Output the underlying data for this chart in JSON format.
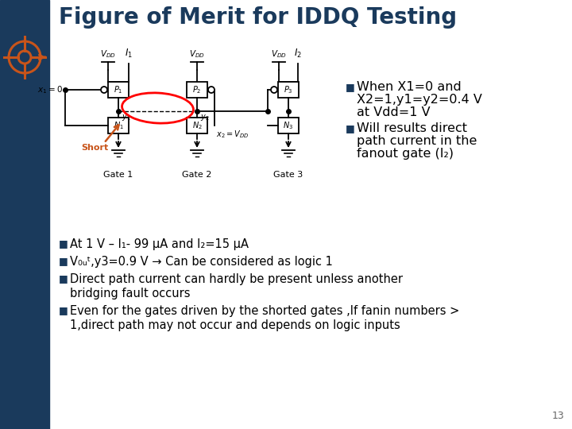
{
  "title": "Figure of Merit for IDDQ Testing",
  "title_color": "#1a3a5c",
  "title_fontsize": 20,
  "bg_color": "#ffffff",
  "left_bar_color": "#1a3a5c",
  "accent_color": "#c8541a",
  "slide_number": "13",
  "bullet1_right_line1": " When X1=0 and",
  "bullet1_right_line2": "  X2=1,y1=y2=0.4 V",
  "bullet1_right_line3": "  at Vdd=1 V",
  "bullet2_right_line1": " Will results direct",
  "bullet2_right_line2": "  path current in the",
  "bullet2_right_line3": "  fanout gate (I₂)",
  "bullet1_bottom": "At 1 V – I₁- 99 μA and I₂=15 μA",
  "bullet2_bottom": "V₀ᵤᵗ,y3=0.9 V → Can be considered as logic 1",
  "bullet3_bottom_l1": "Direct path current can hardly be present unless another",
  "bullet3_bottom_l2": "bridging fault occurs",
  "bullet4_bottom_l1": "Even for the gates driven by the shorted gates ,If fanin numbers >",
  "bullet4_bottom_l2": "1,direct path may not occur and depends on logic inputs",
  "short_label": "Short",
  "short_label_color": "#c8541a"
}
